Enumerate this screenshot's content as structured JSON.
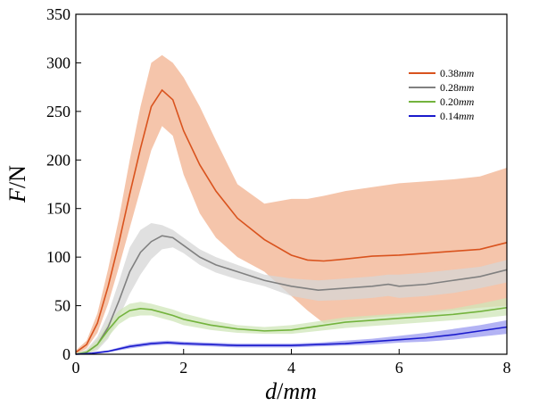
{
  "chart_data": {
    "type": "line",
    "title": "",
    "xlabel": {
      "symbol": "d",
      "sep": "/",
      "unit": "mm"
    },
    "ylabel": {
      "symbol": "F",
      "sep": "/",
      "unit": "N"
    },
    "xlim": [
      0,
      8
    ],
    "ylim": [
      0,
      350
    ],
    "xticks": [
      0,
      2,
      4,
      6,
      8
    ],
    "yticks": [
      0,
      50,
      100,
      150,
      200,
      250,
      300,
      350
    ],
    "grid": false,
    "legend_position": "top-right",
    "series": [
      {
        "name": "0.38",
        "unit": "mm",
        "color": "#d9531e",
        "band_color": "#f2b18f",
        "x": [
          0,
          0.2,
          0.4,
          0.6,
          0.8,
          1.0,
          1.2,
          1.4,
          1.6,
          1.8,
          2.0,
          2.3,
          2.6,
          3.0,
          3.5,
          4.0,
          4.3,
          4.6,
          5.0,
          5.5,
          6.0,
          6.5,
          7.0,
          7.5,
          8.0
        ],
        "mean": [
          2,
          10,
          32,
          70,
          115,
          165,
          212,
          255,
          272,
          262,
          230,
          195,
          168,
          140,
          118,
          102,
          97,
          96,
          98,
          101,
          102,
          104,
          106,
          108,
          115
        ],
        "upper": [
          4,
          14,
          42,
          88,
          140,
          200,
          255,
          300,
          308,
          300,
          285,
          255,
          220,
          175,
          155,
          160,
          160,
          163,
          168,
          172,
          176,
          178,
          180,
          183,
          192
        ],
        "lower": [
          0,
          6,
          22,
          52,
          90,
          130,
          170,
          210,
          235,
          225,
          185,
          145,
          120,
          100,
          85,
          60,
          45,
          32,
          35,
          38,
          40,
          42,
          45,
          48,
          50
        ]
      },
      {
        "name": "0.28",
        "unit": "mm",
        "color": "#808080",
        "band_color": "#d6d6d6",
        "x": [
          0,
          0.2,
          0.4,
          0.6,
          0.8,
          1.0,
          1.2,
          1.4,
          1.6,
          1.8,
          2.0,
          2.3,
          2.6,
          3.0,
          3.5,
          4.0,
          4.5,
          5.0,
          5.5,
          5.8,
          6.0,
          6.5,
          7.0,
          7.5,
          8.0
        ],
        "mean": [
          0,
          2,
          10,
          28,
          55,
          85,
          105,
          116,
          122,
          120,
          112,
          100,
          92,
          85,
          76,
          70,
          66,
          68,
          70,
          72,
          70,
          72,
          76,
          80,
          87
        ],
        "upper": [
          1,
          5,
          18,
          42,
          75,
          110,
          128,
          135,
          133,
          128,
          120,
          108,
          100,
          92,
          82,
          78,
          76,
          78,
          80,
          82,
          82,
          84,
          87,
          90,
          97
        ],
        "lower": [
          0,
          0,
          4,
          16,
          38,
          62,
          82,
          98,
          108,
          110,
          104,
          92,
          84,
          77,
          70,
          60,
          55,
          56,
          58,
          60,
          58,
          60,
          63,
          68,
          74
        ]
      },
      {
        "name": "0.20",
        "unit": "mm",
        "color": "#73b33d",
        "band_color": "#cfe6b8",
        "x": [
          0,
          0.2,
          0.4,
          0.6,
          0.8,
          1.0,
          1.2,
          1.4,
          1.6,
          1.8,
          2.0,
          2.5,
          3.0,
          3.5,
          4.0,
          4.5,
          5.0,
          5.5,
          6.0,
          6.5,
          7.0,
          7.5,
          8.0
        ],
        "mean": [
          0,
          2,
          10,
          25,
          38,
          45,
          47,
          46,
          43,
          40,
          36,
          30,
          26,
          24,
          25,
          29,
          33,
          35,
          37,
          39,
          41,
          44,
          48
        ],
        "upper": [
          1,
          4,
          15,
          32,
          45,
          52,
          54,
          52,
          49,
          46,
          42,
          35,
          30,
          28,
          30,
          34,
          38,
          40,
          42,
          44,
          47,
          52,
          58
        ],
        "lower": [
          0,
          0,
          6,
          18,
          31,
          38,
          40,
          40,
          37,
          34,
          30,
          25,
          22,
          21,
          21,
          24,
          27,
          29,
          31,
          33,
          35,
          37,
          40
        ]
      },
      {
        "name": "0.14",
        "unit": "mm",
        "color": "#1a1acc",
        "band_color": "#9a9af0",
        "x": [
          0,
          0.3,
          0.6,
          1.0,
          1.4,
          1.7,
          2.0,
          2.5,
          3.0,
          3.5,
          4.0,
          4.5,
          5.0,
          5.5,
          6.0,
          6.5,
          7.0,
          7.5,
          8.0
        ],
        "mean": [
          0,
          1,
          3,
          8,
          11,
          12,
          11,
          10,
          9,
          9,
          9,
          10,
          11,
          13,
          15,
          17,
          20,
          24,
          28
        ],
        "upper": [
          0,
          2,
          4,
          10,
          13,
          14,
          13,
          12,
          11,
          11,
          11,
          12,
          14,
          16,
          19,
          22,
          26,
          30,
          35
        ],
        "lower": [
          0,
          0,
          2,
          6,
          9,
          10,
          9,
          8,
          7,
          7,
          7,
          8,
          9,
          10,
          12,
          13,
          15,
          18,
          21
        ]
      }
    ]
  }
}
